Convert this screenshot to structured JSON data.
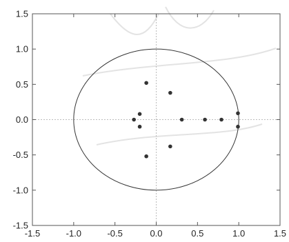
{
  "chart_data": {
    "type": "scatter",
    "title": "",
    "xlabel": "",
    "ylabel": "",
    "xlim": [
      -1.5,
      1.5
    ],
    "ylim": [
      -1.5,
      1.5
    ],
    "x_ticks": [
      -1.5,
      -1.0,
      -0.5,
      0.0,
      0.5,
      1.0,
      1.5
    ],
    "y_ticks": [
      -1.5,
      -1.0,
      -0.5,
      0.0,
      0.5,
      1.0,
      1.5
    ],
    "x_tick_labels": [
      "-1.5",
      "-1.0",
      "-0.5",
      "0.0",
      "0.5",
      "1.0",
      "1.5"
    ],
    "y_tick_labels": [
      "-1.5",
      "-1.0",
      "-0.5",
      "0.0",
      "0.5",
      "1.0",
      "1.5"
    ],
    "reference_circle": {
      "center": [
        0,
        0
      ],
      "radius": 1
    },
    "zero_lines": true,
    "grid": false,
    "series": [
      {
        "points": [
          {
            "x": -0.12,
            "y": 0.52
          },
          {
            "x": 0.17,
            "y": 0.38
          },
          {
            "x": -0.2,
            "y": 0.08
          },
          {
            "x": -0.27,
            "y": 0.0
          },
          {
            "x": -0.2,
            "y": -0.1
          },
          {
            "x": 0.31,
            "y": 0.0
          },
          {
            "x": 0.59,
            "y": 0.0
          },
          {
            "x": 0.79,
            "y": 0.0
          },
          {
            "x": 0.99,
            "y": 0.09
          },
          {
            "x": 0.99,
            "y": -0.1
          },
          {
            "x": 0.17,
            "y": -0.38
          },
          {
            "x": -0.12,
            "y": -0.52
          }
        ]
      }
    ]
  },
  "colors": {
    "points": "#333333",
    "circle": "#333333",
    "frame": "#555555",
    "zero_lines": "#bbbbbb"
  }
}
